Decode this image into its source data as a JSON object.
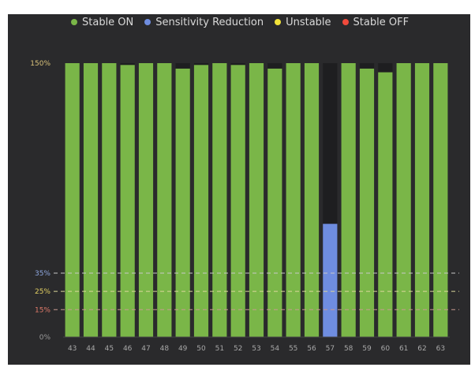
{
  "chart_data": {
    "type": "bar",
    "categories": [
      "43",
      "44",
      "45",
      "46",
      "47",
      "48",
      "49",
      "50",
      "51",
      "52",
      "53",
      "54",
      "55",
      "56",
      "57",
      "58",
      "59",
      "60",
      "61",
      "62",
      "63"
    ],
    "values": [
      150,
      150,
      150,
      149,
      150,
      150,
      147,
      149,
      150,
      149,
      150,
      147,
      150,
      150,
      62,
      150,
      147,
      145,
      150,
      150,
      150
    ],
    "bar_status": [
      "Stable ON",
      "Stable ON",
      "Stable ON",
      "Stable ON",
      "Stable ON",
      "Stable ON",
      "Stable ON",
      "Stable ON",
      "Stable ON",
      "Stable ON",
      "Stable ON",
      "Stable ON",
      "Stable ON",
      "Stable ON",
      "Sensitivity Reduction",
      "Stable ON",
      "Stable ON",
      "Stable ON",
      "Stable ON",
      "Stable ON",
      "Stable ON"
    ],
    "status_colors": {
      "Stable ON": "#7ab648",
      "Sensitivity Reduction": "#6f8de0",
      "Unstable": "#f2e33a",
      "Stable OFF": "#f04a3c"
    },
    "legend": [
      {
        "label": "Stable ON",
        "color": "#7ab648"
      },
      {
        "label": "Sensitivity Reduction",
        "color": "#6f8de0"
      },
      {
        "label": "Unstable",
        "color": "#f2e33a"
      },
      {
        "label": "Stable OFF",
        "color": "#f04a3c"
      }
    ],
    "ylim": [
      0,
      150
    ],
    "y_ticks": [
      {
        "label": "150%",
        "value": 150,
        "color": "#d9c27a",
        "line": false
      },
      {
        "label": "35%",
        "value": 35,
        "color": "#8fa8e0",
        "line": true,
        "line_color": "#c8c8c8"
      },
      {
        "label": "25%",
        "value": 25,
        "color": "#e2cf62",
        "line": true,
        "line_color": "#d9d59a"
      },
      {
        "label": "15%",
        "value": 15,
        "color": "#e07a6a",
        "line": true,
        "line_color": "#c89a8f"
      },
      {
        "label": "0%",
        "value": 0,
        "color": "#9a9a9a",
        "line": false
      }
    ],
    "legend_position": "top",
    "grid": false
  }
}
